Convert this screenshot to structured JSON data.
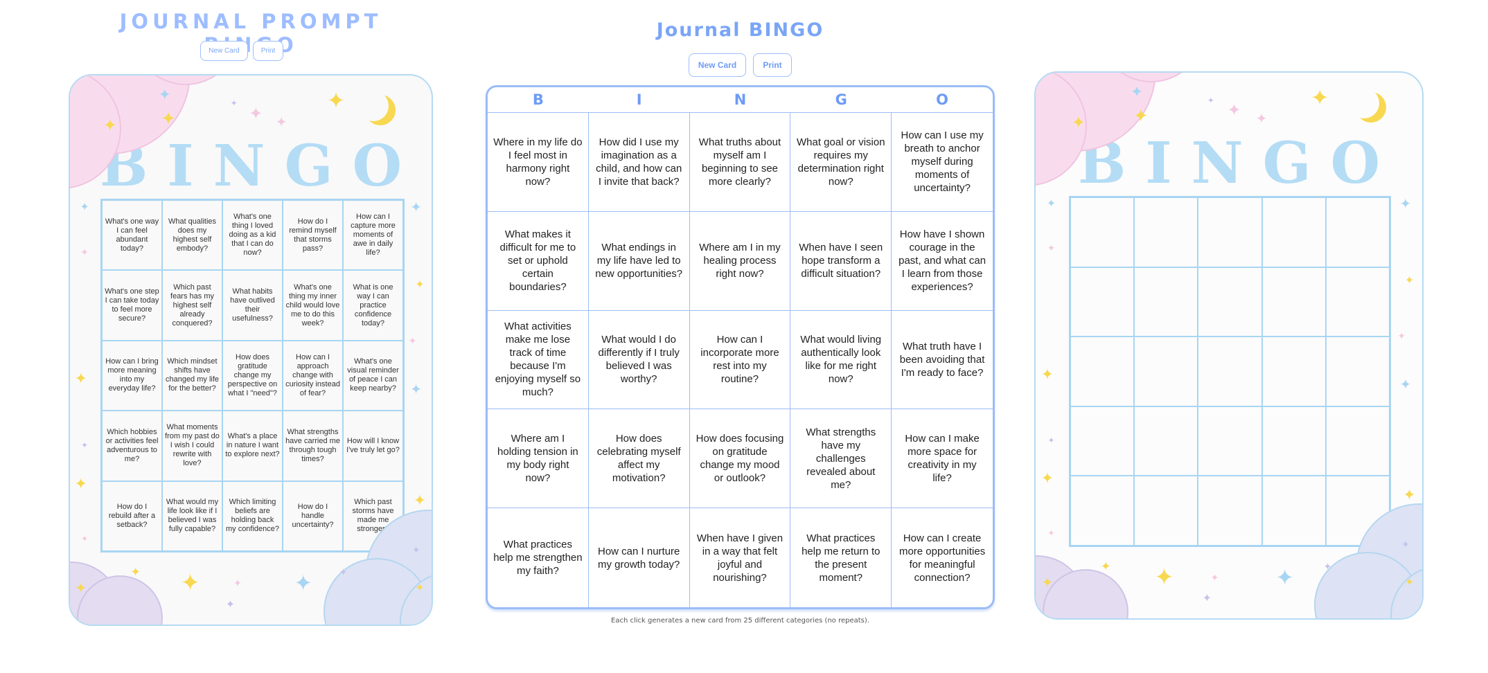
{
  "left": {
    "title": "JOURNAL PROMPT BINGO",
    "new_card_label": "New Card",
    "print_label": "Print",
    "card_heading": "BINGO",
    "cells": [
      "What's one way I can feel abundant today?",
      "What qualities does my highest self embody?",
      "What's one thing I loved doing as a kid that I can do now?",
      "How do I remind myself that storms pass?",
      "How can I capture more moments of awe in daily life?",
      "What's one step I can take today to feel more secure?",
      "Which past fears has my highest self already conquered?",
      "What habits have outlived their usefulness?",
      "What's one thing my inner child would love me to do this week?",
      "What is one way I can practice confidence today?",
      "How can I bring more meaning into my everyday life?",
      "Which mindset shifts have changed my life for the better?",
      "How does gratitude change my perspective on what I \"need\"?",
      "How can I approach change with curiosity instead of fear?",
      "What's one visual reminder of peace I can keep nearby?",
      "Which hobbies or activities feel adventurous to me?",
      "What moments from my past do I wish I could rewrite with love?",
      "What's a place in nature I want to explore next?",
      "What strengths have carried me through tough times?",
      "How will I know I've truly let go?",
      "How do I rebuild after a setback?",
      "What would my life look like if I believed I was fully capable?",
      "Which limiting beliefs are holding back my confidence?",
      "How do I handle uncertainty?",
      "Which past storms have made me stronger?"
    ]
  },
  "middle": {
    "title": "Journal BINGO",
    "new_card_label": "New Card",
    "print_label": "Print",
    "letters": [
      "B",
      "I",
      "N",
      "G",
      "O"
    ],
    "cells": [
      "Where in my life do I feel most in harmony right now?",
      "How did I use my imagination as a child, and how can I invite that back?",
      "What truths about myself am I beginning to see more clearly?",
      "What goal or vision requires my determination right now?",
      "How can I use my breath to anchor myself during moments of uncertainty?",
      "What makes it difficult for me to set or uphold certain boundaries?",
      "What endings in my life have led to new opportunities?",
      "Where am I in my healing process right now?",
      "When have I seen hope transform a difficult situation?",
      "How have I shown courage in the past, and what can I learn from those experiences?",
      "What activities make me lose track of time because I'm enjoying myself so much?",
      "What would I do differently if I truly believed I was worthy?",
      "How can I incorporate more rest into my routine?",
      "What would living authentically look like for me right now?",
      "What truth have I been avoiding that I'm ready to face?",
      "Where am I holding tension in my body right now?",
      "How does celebrating myself affect my motivation?",
      "How does focusing on gratitude change my mood or outlook?",
      "What strengths have my challenges revealed about me?",
      "How can I make more space for creativity in my life?",
      "What practices help me strengthen my faith?",
      "How can I nurture my growth today?",
      "When have I given in a way that felt joyful and nourishing?",
      "What practices help me return to the present moment?",
      "How can I create more opportunities for meaningful connection?"
    ],
    "footer": "Each click generates a new card from 25 different categories (no repeats)."
  },
  "right": {
    "card_heading": "BINGO"
  },
  "colors": {
    "accent": "#7aa5f7",
    "grid_line": "#a8d5f2",
    "heading": "#b4dcf5",
    "star_yellow": "#f8d850",
    "cloud_pink": "#f8dcee",
    "cloud_lavender": "#e2dcf0"
  }
}
